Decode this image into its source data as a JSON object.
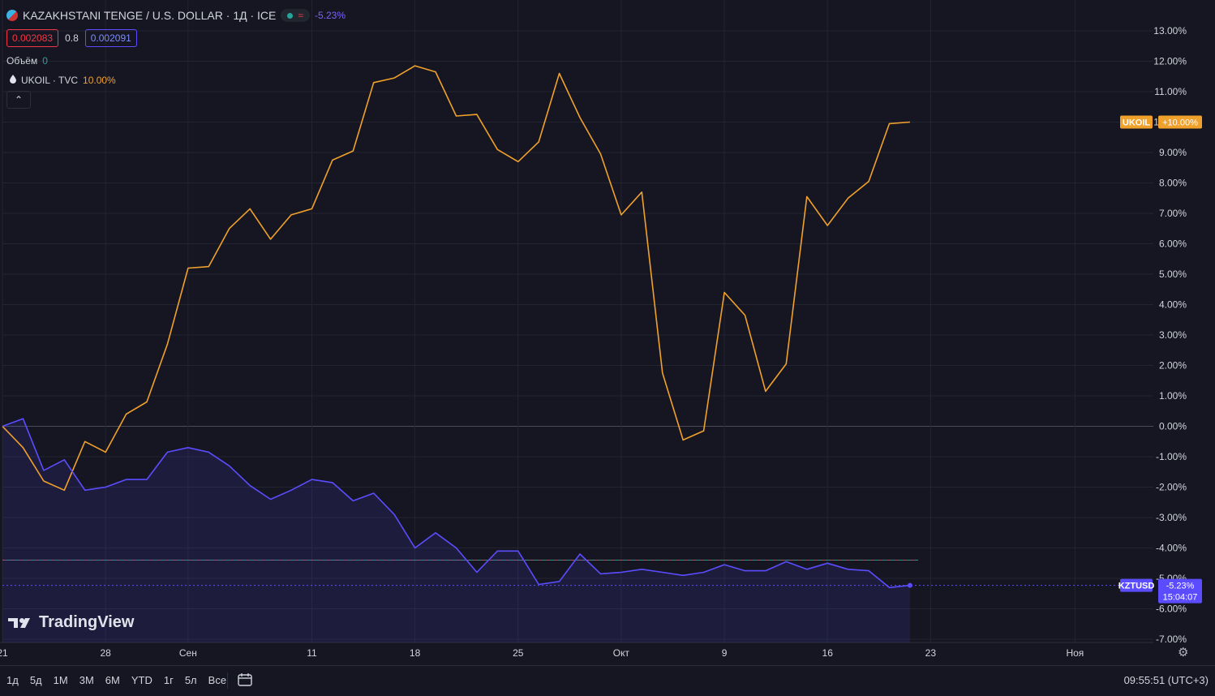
{
  "header": {
    "title": "KAZAKHSTANI TENGE / U.S. DOLLAR · 1Д · ICE",
    "status_wave": "≈",
    "change": "-5.23%",
    "bid": "0.002083",
    "spread": "0.8",
    "ask": "0.002091",
    "volume_label": "Объём",
    "volume_value": "0",
    "compare_symbol": "UKOIL · TVC",
    "compare_pct": "10.00%",
    "collapse_glyph": "⌃"
  },
  "colors": {
    "background": "#161622",
    "ukoil": "#f0a12b",
    "kztusd": "#5b4dff",
    "grid": "#22242f"
  },
  "chart_data": {
    "type": "line",
    "percent_scale": true,
    "y_ticks": [
      "13.00%",
      "12.00%",
      "11.00%",
      "10.00%",
      "9.00%",
      "8.00%",
      "7.00%",
      "6.00%",
      "5.00%",
      "4.00%",
      "3.00%",
      "2.00%",
      "1.00%",
      "0.00%",
      "-1.00%",
      "-2.00%",
      "-3.00%",
      "-4.00%",
      "-5.00%",
      "-6.00%",
      "-7.00%"
    ],
    "y_tick_values": [
      13,
      12,
      11,
      10,
      9,
      8,
      7,
      6,
      5,
      4,
      3,
      2,
      1,
      0,
      -1,
      -2,
      -3,
      -4,
      -5,
      -6,
      -7
    ],
    "ylim": [
      -7,
      13
    ],
    "x_ticks": [
      "21",
      "28",
      "Сен",
      "11",
      "18",
      "25",
      "Окт",
      "9",
      "16",
      "23",
      "Ноя"
    ],
    "x_tick_index": [
      0,
      5,
      9,
      15,
      20,
      25,
      30,
      35,
      40,
      45,
      52
    ],
    "x_range": [
      0,
      55.8
    ],
    "series": [
      {
        "name": "UKOIL",
        "color": "#f0a12b",
        "label": "UKOIL",
        "value_label": "+10.00%",
        "values": [
          0,
          -0.7,
          -1.8,
          -2.1,
          -0.5,
          -0.85,
          0.4,
          0.8,
          2.7,
          5.2,
          5.25,
          6.5,
          7.15,
          6.15,
          6.95,
          7.15,
          8.75,
          9.05,
          11.3,
          11.45,
          11.85,
          11.65,
          10.2,
          10.25,
          9.1,
          8.7,
          9.35,
          11.6,
          10.15,
          8.95,
          6.95,
          7.7,
          1.75,
          -0.45,
          -0.15,
          4.4,
          3.65,
          1.15,
          2.05,
          7.55,
          6.6,
          7.5,
          8.05,
          9.95,
          10.0
        ]
      },
      {
        "name": "KZTUSD",
        "color": "#5b4dff",
        "label": "KZTUSD",
        "value_label": "-5.23%",
        "value_sublabel": "15:04:07",
        "values": [
          0,
          0.25,
          -1.45,
          -1.1,
          -2.1,
          -2.0,
          -1.75,
          -1.75,
          -0.85,
          -0.7,
          -0.85,
          -1.3,
          -1.95,
          -2.4,
          -2.1,
          -1.75,
          -1.85,
          -2.45,
          -2.2,
          -2.9,
          -4.0,
          -3.5,
          -4.0,
          -4.8,
          -4.1,
          -4.1,
          -5.2,
          -5.1,
          -4.2,
          -4.85,
          -4.8,
          -4.7,
          -4.8,
          -4.9,
          -4.8,
          -4.55,
          -4.75,
          -4.75,
          -4.45,
          -4.7,
          -4.5,
          -4.7,
          -4.75,
          -5.3,
          -5.23
        ]
      }
    ],
    "reference_line": -4.4
  },
  "branding": {
    "logo_text": "TradingView"
  },
  "bottom_bar": {
    "ranges": [
      "1д",
      "5д",
      "1М",
      "3М",
      "6М",
      "YTD",
      "1г",
      "5л",
      "Все"
    ],
    "clock": "09:55:51 (UTC+3)"
  }
}
